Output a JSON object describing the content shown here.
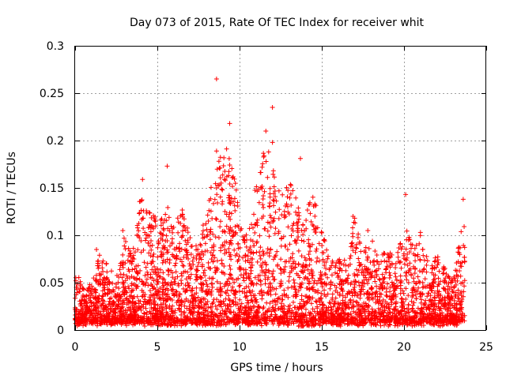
{
  "chart_data": {
    "type": "scatter",
    "title": "Day 073 of 2015, Rate Of TEC Index for receiver whit",
    "xlabel": "GPS time / hours",
    "ylabel": "ROTI / TECUs",
    "xlim": [
      0,
      25
    ],
    "ylim": [
      0,
      0.3
    ],
    "x_ticks": [
      0,
      5,
      10,
      15,
      20,
      25
    ],
    "x_tick_labels": [
      "0",
      "5",
      "10",
      "15",
      "20",
      "25"
    ],
    "y_ticks": [
      0,
      0.05,
      0.1,
      0.15,
      0.2,
      0.25,
      0.3
    ],
    "y_tick_labels": [
      "0",
      "0.05",
      "0.1",
      "0.15",
      "0.2",
      "0.25",
      "0.3"
    ],
    "grid": true,
    "legend": "none",
    "marker": "plus",
    "color": "#ff0000",
    "x_data_range": [
      0,
      23.7
    ],
    "notable_points": [
      {
        "x": 8.6,
        "y": 0.265
      },
      {
        "x": 12.0,
        "y": 0.235
      },
      {
        "x": 9.4,
        "y": 0.218
      },
      {
        "x": 11.6,
        "y": 0.21
      },
      {
        "x": 12.0,
        "y": 0.198
      },
      {
        "x": 8.6,
        "y": 0.189
      },
      {
        "x": 13.7,
        "y": 0.181
      },
      {
        "x": 5.6,
        "y": 0.173
      },
      {
        "x": 4.1,
        "y": 0.159
      },
      {
        "x": 20.1,
        "y": 0.143
      },
      {
        "x": 23.6,
        "y": 0.138
      },
      {
        "x": 16.9,
        "y": 0.12
      },
      {
        "x": 17.8,
        "y": 0.105
      },
      {
        "x": 2.9,
        "y": 0.105
      },
      {
        "x": 21.0,
        "y": 0.103
      },
      {
        "x": 1.3,
        "y": 0.085
      }
    ],
    "envelope": {
      "x": [
        0,
        0.5,
        1,
        1.5,
        2,
        2.5,
        3,
        3.5,
        4,
        4.5,
        5,
        5.5,
        6,
        6.5,
        7,
        7.5,
        8,
        8.5,
        9,
        9.5,
        10,
        10.5,
        11,
        11.5,
        12,
        12.5,
        13,
        13.5,
        14,
        14.5,
        15,
        15.5,
        16,
        16.5,
        17,
        17.5,
        18,
        18.5,
        19,
        19.5,
        20,
        20.5,
        21,
        21.5,
        22,
        22.5,
        23,
        23.5
      ],
      "y_top": [
        0.065,
        0.045,
        0.05,
        0.08,
        0.07,
        0.055,
        0.1,
        0.08,
        0.16,
        0.13,
        0.12,
        0.14,
        0.11,
        0.13,
        0.1,
        0.09,
        0.13,
        0.17,
        0.2,
        0.19,
        0.12,
        0.1,
        0.16,
        0.19,
        0.19,
        0.14,
        0.16,
        0.14,
        0.12,
        0.15,
        0.11,
        0.07,
        0.08,
        0.075,
        0.12,
        0.08,
        0.1,
        0.075,
        0.09,
        0.07,
        0.12,
        0.09,
        0.1,
        0.075,
        0.08,
        0.065,
        0.055,
        0.11
      ]
    }
  }
}
